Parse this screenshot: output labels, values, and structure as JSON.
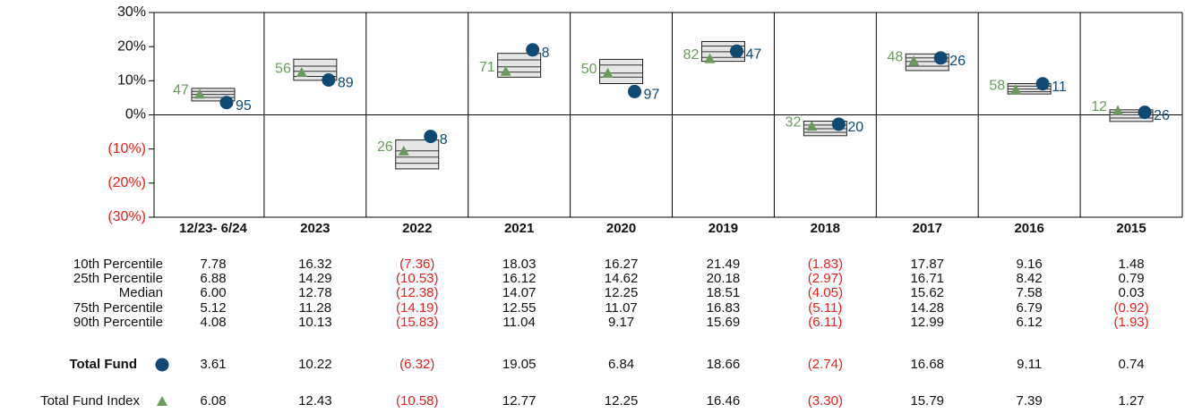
{
  "chart_data": {
    "type": "percentile",
    "categories": [
      "12/23- 6/24",
      "2023",
      "2022",
      "2021",
      "2020",
      "2019",
      "2018",
      "2017",
      "2016",
      "2015"
    ],
    "ylim": [
      -30,
      30
    ],
    "yticks": [
      {
        "value": 30,
        "label": "30%"
      },
      {
        "value": 20,
        "label": "20%"
      },
      {
        "value": 10,
        "label": "10%"
      },
      {
        "value": 0,
        "label": "0%"
      },
      {
        "value": -10,
        "label": "(10%)"
      },
      {
        "value": -20,
        "label": "(20%)"
      },
      {
        "value": -30,
        "label": "(30%)"
      }
    ],
    "percentiles": [
      {
        "name": "10th Percentile",
        "values": [
          7.78,
          16.32,
          -7.36,
          18.03,
          16.27,
          21.49,
          -1.83,
          17.87,
          9.16,
          1.48
        ],
        "value_labels": [
          "7.78",
          "16.32",
          "(7.36)",
          "18.03",
          "16.27",
          "21.49",
          "(1.83)",
          "17.87",
          "9.16",
          "1.48"
        ]
      },
      {
        "name": "25th Percentile",
        "values": [
          6.88,
          14.29,
          -10.53,
          16.12,
          14.62,
          20.18,
          -2.97,
          16.71,
          8.42,
          0.79
        ],
        "value_labels": [
          "6.88",
          "14.29",
          "(10.53)",
          "16.12",
          "14.62",
          "20.18",
          "(2.97)",
          "16.71",
          "8.42",
          "0.79"
        ]
      },
      {
        "name": "Median",
        "values": [
          6.0,
          12.78,
          -12.38,
          14.07,
          12.25,
          18.51,
          -4.05,
          15.62,
          7.58,
          0.03
        ],
        "value_labels": [
          "6.00",
          "12.78",
          "(12.38)",
          "14.07",
          "12.25",
          "18.51",
          "(4.05)",
          "15.62",
          "7.58",
          "0.03"
        ]
      },
      {
        "name": "75th Percentile",
        "values": [
          5.12,
          11.28,
          -14.19,
          12.55,
          11.07,
          16.83,
          -5.11,
          14.28,
          6.79,
          -0.92
        ],
        "value_labels": [
          "5.12",
          "11.28",
          "(14.19)",
          "12.55",
          "11.07",
          "16.83",
          "(5.11)",
          "14.28",
          "6.79",
          "(0.92)"
        ]
      },
      {
        "name": "90th Percentile",
        "values": [
          4.08,
          10.13,
          -15.83,
          11.04,
          9.17,
          15.69,
          -6.11,
          12.99,
          6.12,
          -1.93
        ],
        "value_labels": [
          "4.08",
          "10.13",
          "(15.83)",
          "11.04",
          "9.17",
          "15.69",
          "(6.11)",
          "12.99",
          "6.12",
          "(1.93)"
        ]
      }
    ],
    "series": [
      {
        "name": "Total Fund",
        "color": "#0e4a73",
        "marker": "circle",
        "values": [
          3.61,
          10.22,
          -6.32,
          19.05,
          6.84,
          18.66,
          -2.74,
          16.68,
          9.11,
          0.74
        ],
        "value_labels": [
          "3.61",
          "10.22",
          "(6.32)",
          "19.05",
          "6.84",
          "18.66",
          "(2.74)",
          "16.68",
          "9.11",
          "0.74"
        ],
        "ranks": [
          95,
          89,
          8,
          8,
          97,
          47,
          20,
          26,
          11,
          26
        ]
      },
      {
        "name": "Total Fund Index",
        "color": "#6a9a5c",
        "marker": "triangle",
        "values": [
          6.08,
          12.43,
          -10.58,
          12.77,
          12.25,
          16.46,
          -3.3,
          15.79,
          7.39,
          1.27
        ],
        "value_labels": [
          "6.08",
          "12.43",
          "(10.58)",
          "12.77",
          "12.25",
          "16.46",
          "(3.30)",
          "15.79",
          "7.39",
          "1.27"
        ],
        "ranks": [
          47,
          56,
          26,
          71,
          50,
          82,
          32,
          48,
          58,
          12
        ]
      }
    ],
    "box_color": "#e6e6e6",
    "negative_color": "#e8201c"
  }
}
